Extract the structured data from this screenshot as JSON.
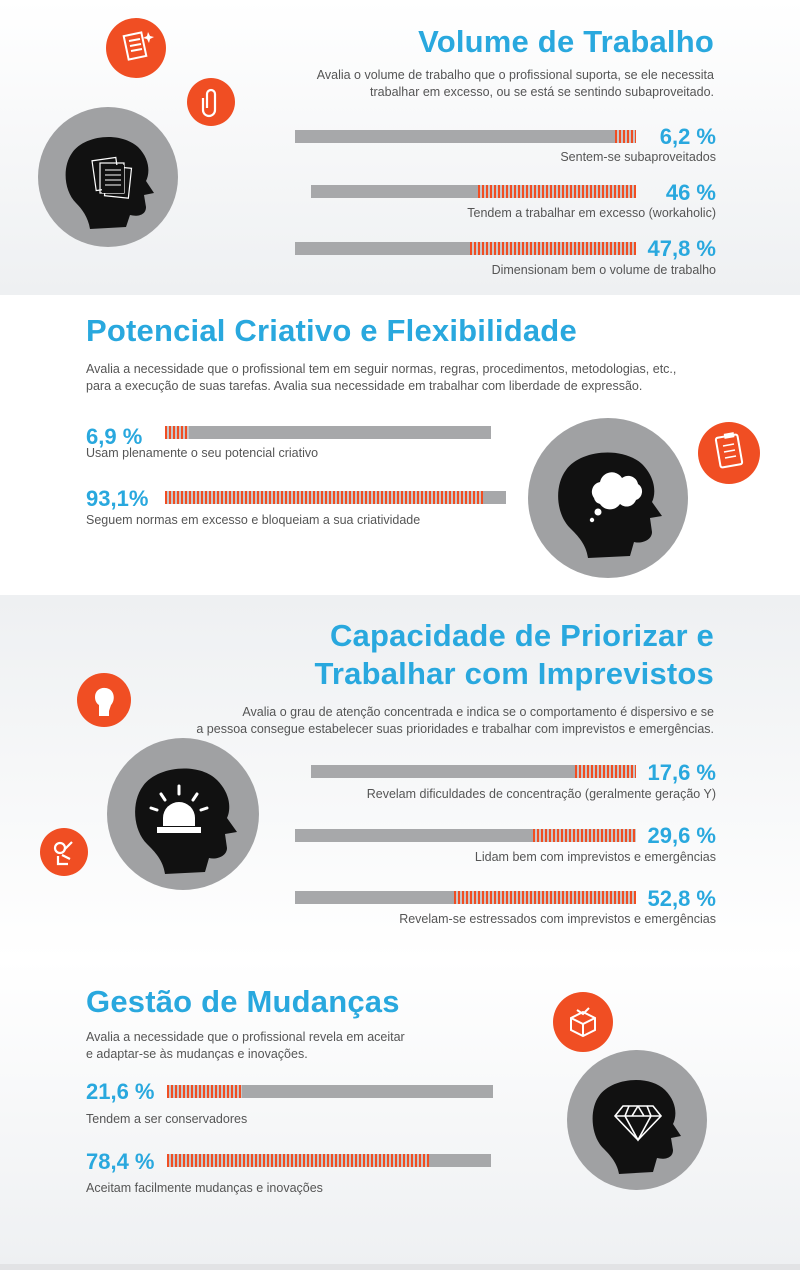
{
  "volume": {
    "title": "Volume de Trabalho",
    "desc": [
      "Avalia o volume de trabalho que o profissional suporta, se ele necessita",
      "trabalhar em excesso, ou se está se sentindo subaproveitado."
    ],
    "stats": [
      {
        "value": "6,2 %",
        "label": "Sentem-se subaproveitados",
        "fraction": 0.062
      },
      {
        "value": "46 %",
        "label": "Tendem a trabalhar em excesso (workaholic)",
        "fraction": 0.46
      },
      {
        "value": "47,8 %",
        "label": "Dimensionam bem o volume de trabalho",
        "fraction": 0.478
      }
    ]
  },
  "criativo": {
    "title": "Potencial Criativo e Flexibilidade",
    "desc": [
      "Avalia a necessidade que o profissional tem em seguir normas, regras, procedimentos, metodologias, etc.,",
      "para a execução de suas tarefas. Avalia sua necessidade em trabalhar com liberdade de expressão."
    ],
    "stats": [
      {
        "value": "6,9 %",
        "label": "Usam plenamente o seu potencial criativo",
        "fraction": 0.069
      },
      {
        "value": "93,1%",
        "label": "Seguem normas em excesso e bloqueiam a sua criatividade",
        "fraction": 0.931
      }
    ]
  },
  "priorizar": {
    "title_line1": "Capacidade de Priorizar e",
    "title_line2": "Trabalhar com Imprevistos",
    "desc": [
      "Avalia o grau de atenção concentrada e indica se o comportamento é dispersivo e se",
      "a pessoa consegue estabelecer suas prioridades e trabalhar com imprevistos e emergências."
    ],
    "stats": [
      {
        "value": "17,6 %",
        "label": "Revelam dificuldades de concentração (geralmente geração Y)",
        "fraction": 0.176
      },
      {
        "value": "29,6 %",
        "label": "Lidam bem com imprevistos e emergências",
        "fraction": 0.296
      },
      {
        "value": "52,8 %",
        "label": "Revelam-se estressados com imprevistos e emergências",
        "fraction": 0.528
      }
    ]
  },
  "mudancas": {
    "title": "Gestão de Mudanças",
    "desc": [
      "Avalia a necessidade que o profissional revela em aceitar",
      "e adaptar-se às mudanças e inovações."
    ],
    "stats": [
      {
        "value": "21,6 %",
        "label": "Tendem a ser conservadores",
        "fraction": 0.216
      },
      {
        "value": "78,4 %",
        "label": "Aceitam facilmente mudanças e inovações",
        "fraction": 0.784
      }
    ]
  },
  "colors": {
    "accent_blue": "#29a8de",
    "accent_orange": "#f04e23",
    "bar_gray": "#a7a8aa",
    "head_gray": "#a0a1a3"
  },
  "icons": [
    "documents-head-icon",
    "thought-cloud-head-icon",
    "alarm-light-head-icon",
    "diamond-head-icon",
    "document-badge-icon",
    "paperclip-badge-icon",
    "clipboard-badge-icon",
    "boxing-glove-badge-icon",
    "ok-hand-badge-icon",
    "gift-box-badge-icon"
  ]
}
